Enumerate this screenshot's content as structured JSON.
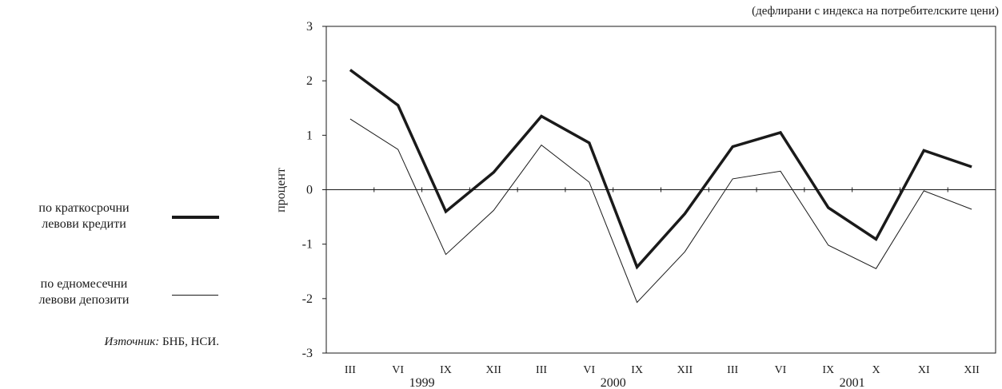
{
  "note": "(дефлирани с индекса на потребителските цени)",
  "legend": {
    "short_term_loans": {
      "line1": "по краткосрочни",
      "line2": "левови кредити"
    },
    "one_month_deposits": {
      "line1": "по едномесечни",
      "line2": "левови депозити"
    }
  },
  "source": {
    "label": "Източник:",
    "text": " БНБ, НСИ."
  },
  "chart_data": {
    "type": "line",
    "ylabel": "процент",
    "xlabel": "",
    "ylim": [
      -3,
      3
    ],
    "yticks": [
      "3",
      "2",
      "1",
      "0",
      "-1",
      "-2",
      "-3"
    ],
    "categories": [
      "III",
      "VI",
      "IX",
      "XII",
      "III",
      "VI",
      "IX",
      "XII",
      "III",
      "VI",
      "IX",
      "X",
      "XI",
      "XII"
    ],
    "year_groups": [
      {
        "label": "1999",
        "start": 0,
        "end": 3
      },
      {
        "label": "2000",
        "start": 4,
        "end": 7
      },
      {
        "label": "2001",
        "start": 8,
        "end": 13
      }
    ],
    "series": [
      {
        "name": "по краткосрочни левови кредити",
        "style": "thick",
        "color": "#1a1a1a",
        "values": [
          2.2,
          1.55,
          -0.4,
          0.32,
          1.35,
          0.86,
          -1.42,
          -0.44,
          0.79,
          1.05,
          -0.33,
          -0.91,
          0.72,
          0.42
        ]
      },
      {
        "name": "по едномесечни левови депозити",
        "style": "thin",
        "color": "#1a1a1a",
        "values": [
          1.3,
          0.74,
          -1.19,
          -0.38,
          0.82,
          0.14,
          -2.07,
          -1.14,
          0.2,
          0.34,
          -1.02,
          -1.45,
          -0.02,
          -0.36
        ]
      }
    ]
  }
}
